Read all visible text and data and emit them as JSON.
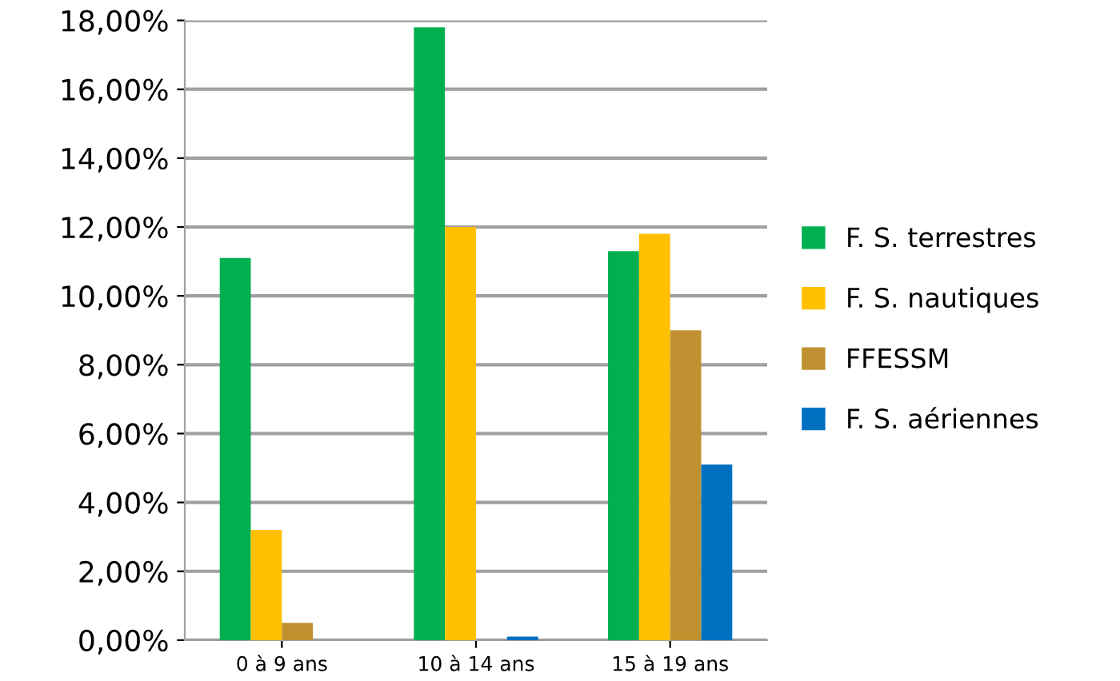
{
  "chart_data": {
    "type": "bar",
    "categories": [
      "0 à 9 ans",
      "10 à 14 ans",
      "15 à 19 ans"
    ],
    "series": [
      {
        "name": "F. S. terrestres",
        "color": "#00b050",
        "values": [
          11.1,
          17.8,
          11.3
        ]
      },
      {
        "name": "F. S. nautiques",
        "color": "#ffc000",
        "values": [
          3.2,
          12.0,
          11.8
        ]
      },
      {
        "name": "FFESSM",
        "color": "#bf9130",
        "values": [
          0.5,
          0,
          9.0
        ]
      },
      {
        "name": "F. S. aériennes",
        "color": "#0070c0",
        "values": [
          0,
          0.1,
          5.1
        ]
      }
    ],
    "ylim": [
      0,
      18
    ],
    "yticks": [
      {
        "value": 0,
        "label": "0,00%"
      },
      {
        "value": 2,
        "label": "2,00%"
      },
      {
        "value": 4,
        "label": "4,00%"
      },
      {
        "value": 6,
        "label": "6,00%"
      },
      {
        "value": 8,
        "label": "8,00%"
      },
      {
        "value": 10,
        "label": "10,00%"
      },
      {
        "value": 12,
        "label": "12,00%"
      },
      {
        "value": 14,
        "label": "14,00%"
      },
      {
        "value": 16,
        "label": "16,00%"
      },
      {
        "value": 18,
        "label": "18,00%"
      }
    ],
    "grid": "y",
    "legend": "right"
  }
}
